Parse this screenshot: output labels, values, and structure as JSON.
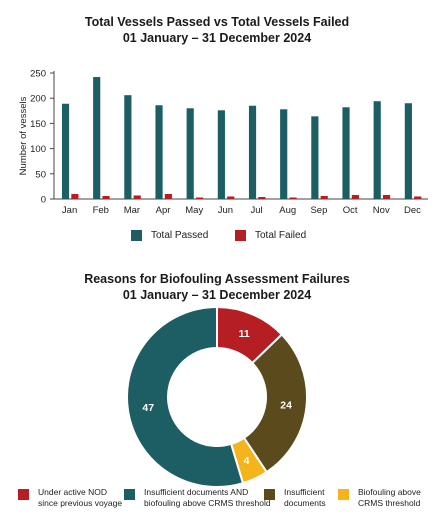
{
  "colors": {
    "passed": "#1c5e63",
    "failed": "#b51f24",
    "text": "#1a1a1a",
    "axis": "#444444"
  },
  "chart_data": [
    {
      "type": "bar",
      "title": "Total Vessels Passed vs Total Vessels Failed",
      "subtitle": "01 January – 31 December 2024",
      "categories": [
        "Jan",
        "Feb",
        "Mar",
        "Apr",
        "May",
        "Jun",
        "Jul",
        "Aug",
        "Sep",
        "Oct",
        "Nov",
        "Dec"
      ],
      "series": [
        {
          "name": "Total Passed",
          "color": "#1c5e63",
          "values": [
            189,
            242,
            206,
            186,
            180,
            176,
            185,
            178,
            164,
            182,
            194,
            190
          ]
        },
        {
          "name": "Total Failed",
          "color": "#b51f24",
          "values": [
            10,
            6,
            7,
            10,
            3,
            5,
            4,
            3,
            6,
            8,
            8,
            5
          ]
        }
      ],
      "xlabel": "",
      "ylabel": "Number of vessels",
      "ylim": [
        0,
        250
      ],
      "yticks": [
        0,
        50,
        100,
        150,
        200,
        250
      ],
      "grid": false,
      "legend": "bottom"
    },
    {
      "type": "pie",
      "donut": true,
      "title": "Reasons for Biofouling Assessment Failures",
      "subtitle": "01 January – 31 December 2024",
      "slices": [
        {
          "label": "Under active NOD since previous voyage",
          "label_lines": [
            "Under active NOD",
            "since previous voyage"
          ],
          "value": 11,
          "color": "#b51f24"
        },
        {
          "label": "Insufficient documents",
          "label_lines": [
            "Insufficient",
            "documents"
          ],
          "value": 24,
          "color": "#5b4a1b"
        },
        {
          "label": "Biofouling above CRMS threshold",
          "label_lines": [
            "Biofouling above",
            "CRMS threshold"
          ],
          "value": 4,
          "color": "#f5b41c"
        },
        {
          "label": "Insufficient documents AND biofouling above CRMS threshold",
          "label_lines": [
            "Insufficient documents AND",
            "biofouling above CRMS threshold"
          ],
          "value": 47,
          "color": "#1c5e63"
        }
      ],
      "legend": "bottom",
      "legend_order": [
        0,
        3,
        1,
        2
      ]
    }
  ]
}
